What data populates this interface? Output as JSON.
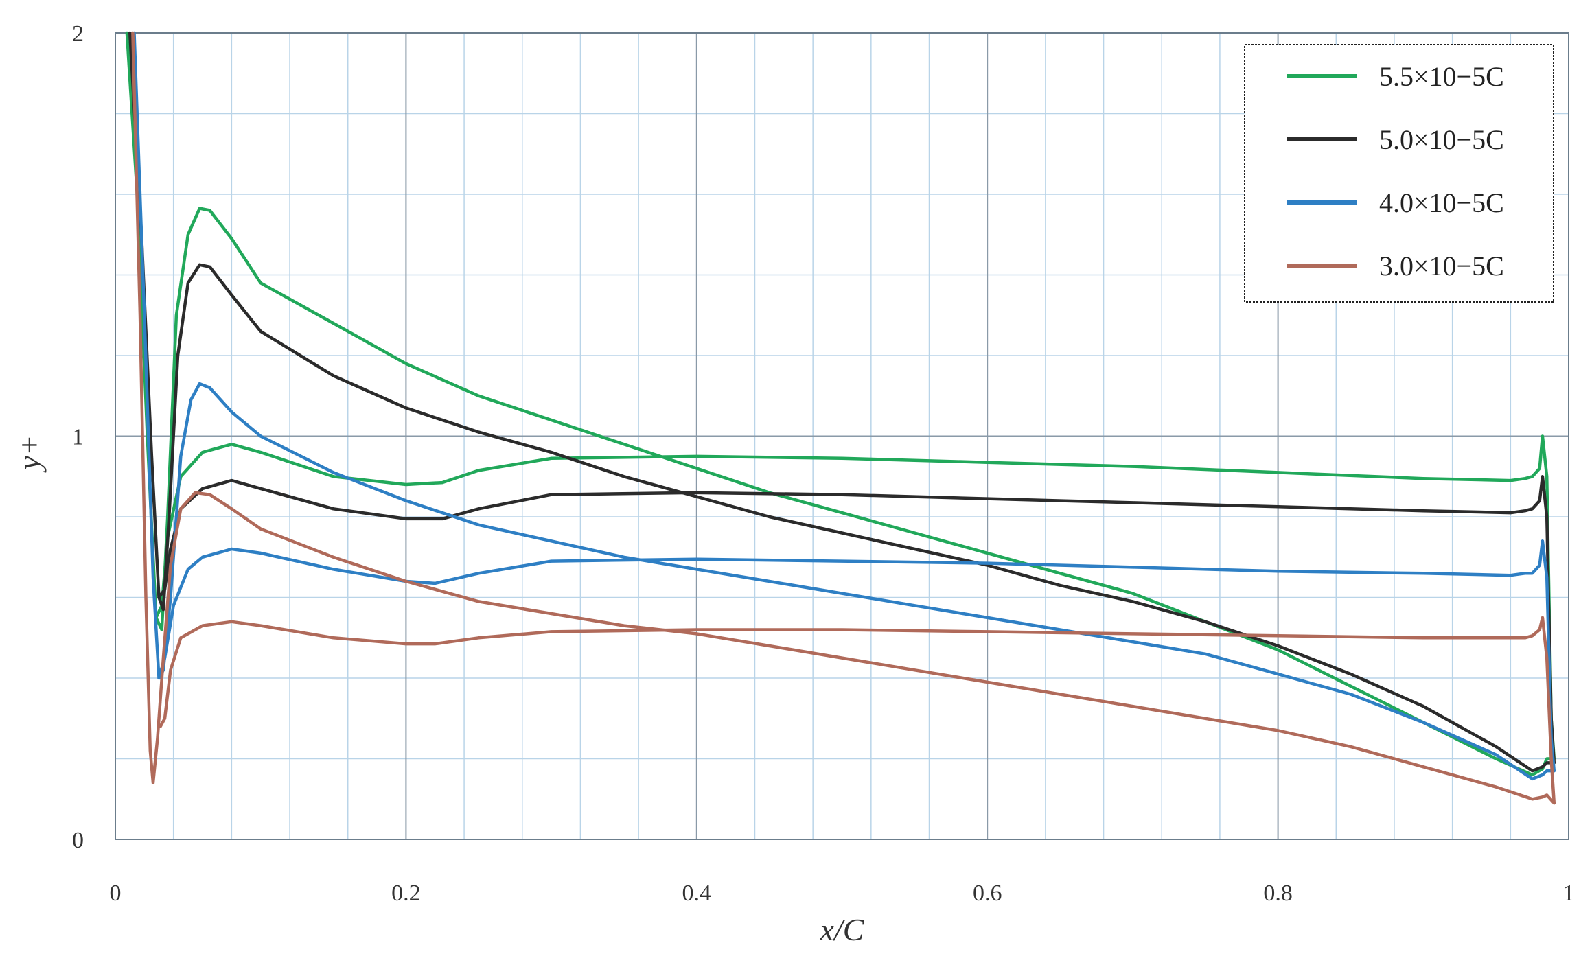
{
  "chart_data": {
    "type": "line",
    "title": "",
    "xlabel": "x/C",
    "ylabel": "y+",
    "xlim": [
      0,
      1
    ],
    "ylim": [
      0,
      2
    ],
    "x_ticks": [
      "0",
      "0.2",
      "0.4",
      "0.6",
      "0.8",
      "1"
    ],
    "y_ticks": [
      "0",
      "1",
      "2"
    ],
    "grid": true,
    "legend_position": "top-right",
    "colors": {
      "green": "#21a85a",
      "black": "#2b2b2b",
      "blue": "#2e7fc4",
      "brown": "#b06a5a",
      "major_grid": "#8a9aa8",
      "minor_grid": "#b9d4e8"
    },
    "series": [
      {
        "name": "5.5×10−5C",
        "color_key": "green",
        "curves": [
          [
            [
              0.008,
              2.0
            ],
            [
              0.015,
              1.6
            ],
            [
              0.022,
              1.0
            ],
            [
              0.028,
              0.55
            ],
            [
              0.032,
              0.52
            ],
            [
              0.036,
              0.8
            ],
            [
              0.042,
              1.3
            ],
            [
              0.05,
              1.5
            ],
            [
              0.058,
              1.565
            ],
            [
              0.065,
              1.56
            ],
            [
              0.08,
              1.49
            ],
            [
              0.1,
              1.38
            ],
            [
              0.15,
              1.28
            ],
            [
              0.2,
              1.18
            ],
            [
              0.25,
              1.1
            ],
            [
              0.3,
              1.04
            ],
            [
              0.35,
              0.98
            ],
            [
              0.4,
              0.92
            ],
            [
              0.45,
              0.86
            ],
            [
              0.5,
              0.81
            ],
            [
              0.55,
              0.76
            ],
            [
              0.6,
              0.71
            ],
            [
              0.65,
              0.66
            ],
            [
              0.7,
              0.61
            ],
            [
              0.75,
              0.54
            ],
            [
              0.8,
              0.47
            ],
            [
              0.85,
              0.38
            ],
            [
              0.9,
              0.29
            ],
            [
              0.95,
              0.2
            ],
            [
              0.975,
              0.16
            ],
            [
              0.982,
              0.175
            ],
            [
              0.985,
              0.2
            ],
            [
              0.99,
              0.2
            ]
          ],
          [
            [
              0.028,
              0.55
            ],
            [
              0.032,
              0.58
            ],
            [
              0.036,
              0.75
            ],
            [
              0.045,
              0.9
            ],
            [
              0.06,
              0.96
            ],
            [
              0.08,
              0.98
            ],
            [
              0.1,
              0.96
            ],
            [
              0.15,
              0.9
            ],
            [
              0.2,
              0.88
            ],
            [
              0.225,
              0.885
            ],
            [
              0.25,
              0.915
            ],
            [
              0.3,
              0.945
            ],
            [
              0.4,
              0.95
            ],
            [
              0.5,
              0.945
            ],
            [
              0.6,
              0.935
            ],
            [
              0.7,
              0.925
            ],
            [
              0.8,
              0.91
            ],
            [
              0.9,
              0.895
            ],
            [
              0.96,
              0.89
            ],
            [
              0.97,
              0.895
            ],
            [
              0.975,
              0.9
            ],
            [
              0.98,
              0.92
            ],
            [
              0.982,
              1.0
            ],
            [
              0.985,
              0.9
            ],
            [
              0.988,
              0.3
            ],
            [
              0.99,
              0.2
            ]
          ]
        ]
      },
      {
        "name": "5.0×10−5C",
        "color_key": "black",
        "curves": [
          [
            [
              0.01,
              2.0
            ],
            [
              0.018,
              1.5
            ],
            [
              0.025,
              0.95
            ],
            [
              0.03,
              0.6
            ],
            [
              0.033,
              0.57
            ],
            [
              0.037,
              0.8
            ],
            [
              0.043,
              1.2
            ],
            [
              0.05,
              1.38
            ],
            [
              0.058,
              1.425
            ],
            [
              0.065,
              1.42
            ],
            [
              0.08,
              1.35
            ],
            [
              0.1,
              1.26
            ],
            [
              0.15,
              1.15
            ],
            [
              0.2,
              1.07
            ],
            [
              0.25,
              1.01
            ],
            [
              0.3,
              0.96
            ],
            [
              0.35,
              0.9
            ],
            [
              0.4,
              0.85
            ],
            [
              0.45,
              0.8
            ],
            [
              0.5,
              0.76
            ],
            [
              0.55,
              0.72
            ],
            [
              0.6,
              0.68
            ],
            [
              0.65,
              0.63
            ],
            [
              0.7,
              0.59
            ],
            [
              0.75,
              0.54
            ],
            [
              0.8,
              0.48
            ],
            [
              0.85,
              0.41
            ],
            [
              0.9,
              0.33
            ],
            [
              0.95,
              0.23
            ],
            [
              0.975,
              0.17
            ],
            [
              0.982,
              0.18
            ],
            [
              0.985,
              0.19
            ],
            [
              0.99,
              0.19
            ]
          ],
          [
            [
              0.03,
              0.6
            ],
            [
              0.034,
              0.62
            ],
            [
              0.038,
              0.72
            ],
            [
              0.045,
              0.82
            ],
            [
              0.06,
              0.87
            ],
            [
              0.08,
              0.89
            ],
            [
              0.1,
              0.87
            ],
            [
              0.15,
              0.82
            ],
            [
              0.2,
              0.795
            ],
            [
              0.225,
              0.795
            ],
            [
              0.25,
              0.82
            ],
            [
              0.3,
              0.855
            ],
            [
              0.4,
              0.86
            ],
            [
              0.5,
              0.855
            ],
            [
              0.6,
              0.845
            ],
            [
              0.7,
              0.835
            ],
            [
              0.8,
              0.825
            ],
            [
              0.9,
              0.815
            ],
            [
              0.96,
              0.81
            ],
            [
              0.97,
              0.815
            ],
            [
              0.975,
              0.82
            ],
            [
              0.98,
              0.84
            ],
            [
              0.982,
              0.9
            ],
            [
              0.985,
              0.8
            ],
            [
              0.988,
              0.3
            ],
            [
              0.99,
              0.19
            ]
          ]
        ]
      },
      {
        "name": "4.0×10−5C",
        "color_key": "blue",
        "curves": [
          [
            [
              0.013,
              2.0
            ],
            [
              0.02,
              1.3
            ],
            [
              0.026,
              0.65
            ],
            [
              0.03,
              0.4
            ],
            [
              0.033,
              0.42
            ],
            [
              0.038,
              0.6
            ],
            [
              0.045,
              0.95
            ],
            [
              0.052,
              1.09
            ],
            [
              0.058,
              1.13
            ],
            [
              0.065,
              1.12
            ],
            [
              0.08,
              1.06
            ],
            [
              0.1,
              1.0
            ],
            [
              0.15,
              0.91
            ],
            [
              0.2,
              0.84
            ],
            [
              0.25,
              0.78
            ],
            [
              0.3,
              0.74
            ],
            [
              0.35,
              0.7
            ],
            [
              0.4,
              0.67
            ],
            [
              0.45,
              0.64
            ],
            [
              0.5,
              0.61
            ],
            [
              0.55,
              0.58
            ],
            [
              0.6,
              0.55
            ],
            [
              0.65,
              0.52
            ],
            [
              0.7,
              0.49
            ],
            [
              0.75,
              0.46
            ],
            [
              0.8,
              0.41
            ],
            [
              0.85,
              0.36
            ],
            [
              0.9,
              0.29
            ],
            [
              0.95,
              0.21
            ],
            [
              0.975,
              0.15
            ],
            [
              0.982,
              0.16
            ],
            [
              0.985,
              0.17
            ],
            [
              0.99,
              0.17
            ]
          ],
          [
            [
              0.03,
              0.4
            ],
            [
              0.034,
              0.45
            ],
            [
              0.04,
              0.58
            ],
            [
              0.05,
              0.67
            ],
            [
              0.06,
              0.7
            ],
            [
              0.08,
              0.72
            ],
            [
              0.1,
              0.71
            ],
            [
              0.15,
              0.67
            ],
            [
              0.2,
              0.64
            ],
            [
              0.22,
              0.635
            ],
            [
              0.25,
              0.66
            ],
            [
              0.3,
              0.69
            ],
            [
              0.4,
              0.695
            ],
            [
              0.5,
              0.69
            ],
            [
              0.6,
              0.685
            ],
            [
              0.7,
              0.675
            ],
            [
              0.8,
              0.665
            ],
            [
              0.9,
              0.66
            ],
            [
              0.96,
              0.655
            ],
            [
              0.97,
              0.66
            ],
            [
              0.975,
              0.66
            ],
            [
              0.98,
              0.68
            ],
            [
              0.982,
              0.74
            ],
            [
              0.985,
              0.65
            ],
            [
              0.988,
              0.25
            ],
            [
              0.99,
              0.17
            ]
          ]
        ]
      },
      {
        "name": "3.0×10−5C",
        "color_key": "brown",
        "curves": [
          [
            [
              0.012,
              2.0
            ],
            [
              0.017,
              1.3
            ],
            [
              0.021,
              0.6
            ],
            [
              0.024,
              0.22
            ],
            [
              0.026,
              0.14
            ],
            [
              0.029,
              0.25
            ],
            [
              0.033,
              0.45
            ],
            [
              0.038,
              0.68
            ],
            [
              0.045,
              0.82
            ],
            [
              0.055,
              0.86
            ],
            [
              0.065,
              0.855
            ],
            [
              0.08,
              0.82
            ],
            [
              0.1,
              0.77
            ],
            [
              0.15,
              0.7
            ],
            [
              0.2,
              0.64
            ],
            [
              0.25,
              0.59
            ],
            [
              0.3,
              0.56
            ],
            [
              0.35,
              0.53
            ],
            [
              0.4,
              0.51
            ],
            [
              0.45,
              0.48
            ],
            [
              0.5,
              0.45
            ],
            [
              0.55,
              0.42
            ],
            [
              0.6,
              0.39
            ],
            [
              0.65,
              0.36
            ],
            [
              0.7,
              0.33
            ],
            [
              0.75,
              0.3
            ],
            [
              0.8,
              0.27
            ],
            [
              0.85,
              0.23
            ],
            [
              0.9,
              0.18
            ],
            [
              0.95,
              0.13
            ],
            [
              0.975,
              0.1
            ],
            [
              0.982,
              0.105
            ],
            [
              0.985,
              0.11
            ],
            [
              0.99,
              0.09
            ]
          ],
          [
            [
              0.031,
              0.28
            ],
            [
              0.034,
              0.3
            ],
            [
              0.038,
              0.42
            ],
            [
              0.045,
              0.5
            ],
            [
              0.06,
              0.53
            ],
            [
              0.08,
              0.54
            ],
            [
              0.1,
              0.53
            ],
            [
              0.15,
              0.5
            ],
            [
              0.2,
              0.485
            ],
            [
              0.22,
              0.485
            ],
            [
              0.25,
              0.5
            ],
            [
              0.3,
              0.515
            ],
            [
              0.4,
              0.52
            ],
            [
              0.5,
              0.52
            ],
            [
              0.6,
              0.515
            ],
            [
              0.7,
              0.51
            ],
            [
              0.8,
              0.505
            ],
            [
              0.9,
              0.5
            ],
            [
              0.96,
              0.5
            ],
            [
              0.97,
              0.5
            ],
            [
              0.975,
              0.505
            ],
            [
              0.98,
              0.52
            ],
            [
              0.982,
              0.55
            ],
            [
              0.985,
              0.45
            ],
            [
              0.988,
              0.2
            ],
            [
              0.99,
              0.09
            ]
          ]
        ]
      }
    ]
  }
}
